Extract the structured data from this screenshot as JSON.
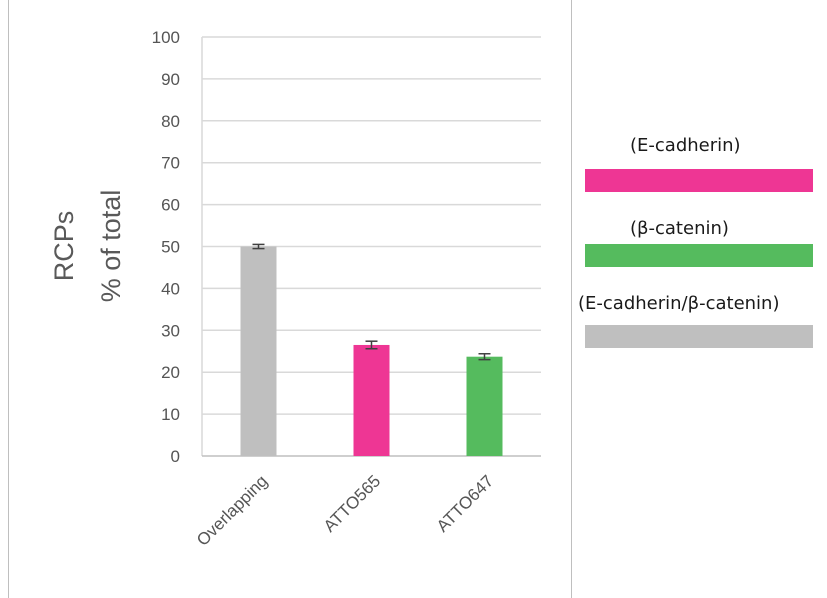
{
  "chart_data": {
    "type": "bar",
    "ylabel": [
      "RCPs",
      "% of total"
    ],
    "categories": [
      "Overlapping",
      "ATTO565",
      "ATTO647"
    ],
    "values": [
      50,
      26.5,
      23.7
    ],
    "errors": [
      0.5,
      0.9,
      0.7
    ],
    "colors": [
      "#bfbfbf",
      "#ee3694",
      "#55bb5e"
    ],
    "ylim": [
      0,
      100
    ],
    "yticks": [
      0,
      10,
      20,
      30,
      40,
      50,
      60,
      70,
      80,
      90,
      100
    ],
    "grid": true
  },
  "legend": {
    "items": [
      {
        "label": "(E-cadherin)",
        "color": "#ee3694"
      },
      {
        "label": "(β-catenin)",
        "color": "#55bb5e"
      },
      {
        "label": "(E-cadherin/β-catenin)",
        "color": "#bfbfbf"
      }
    ]
  }
}
